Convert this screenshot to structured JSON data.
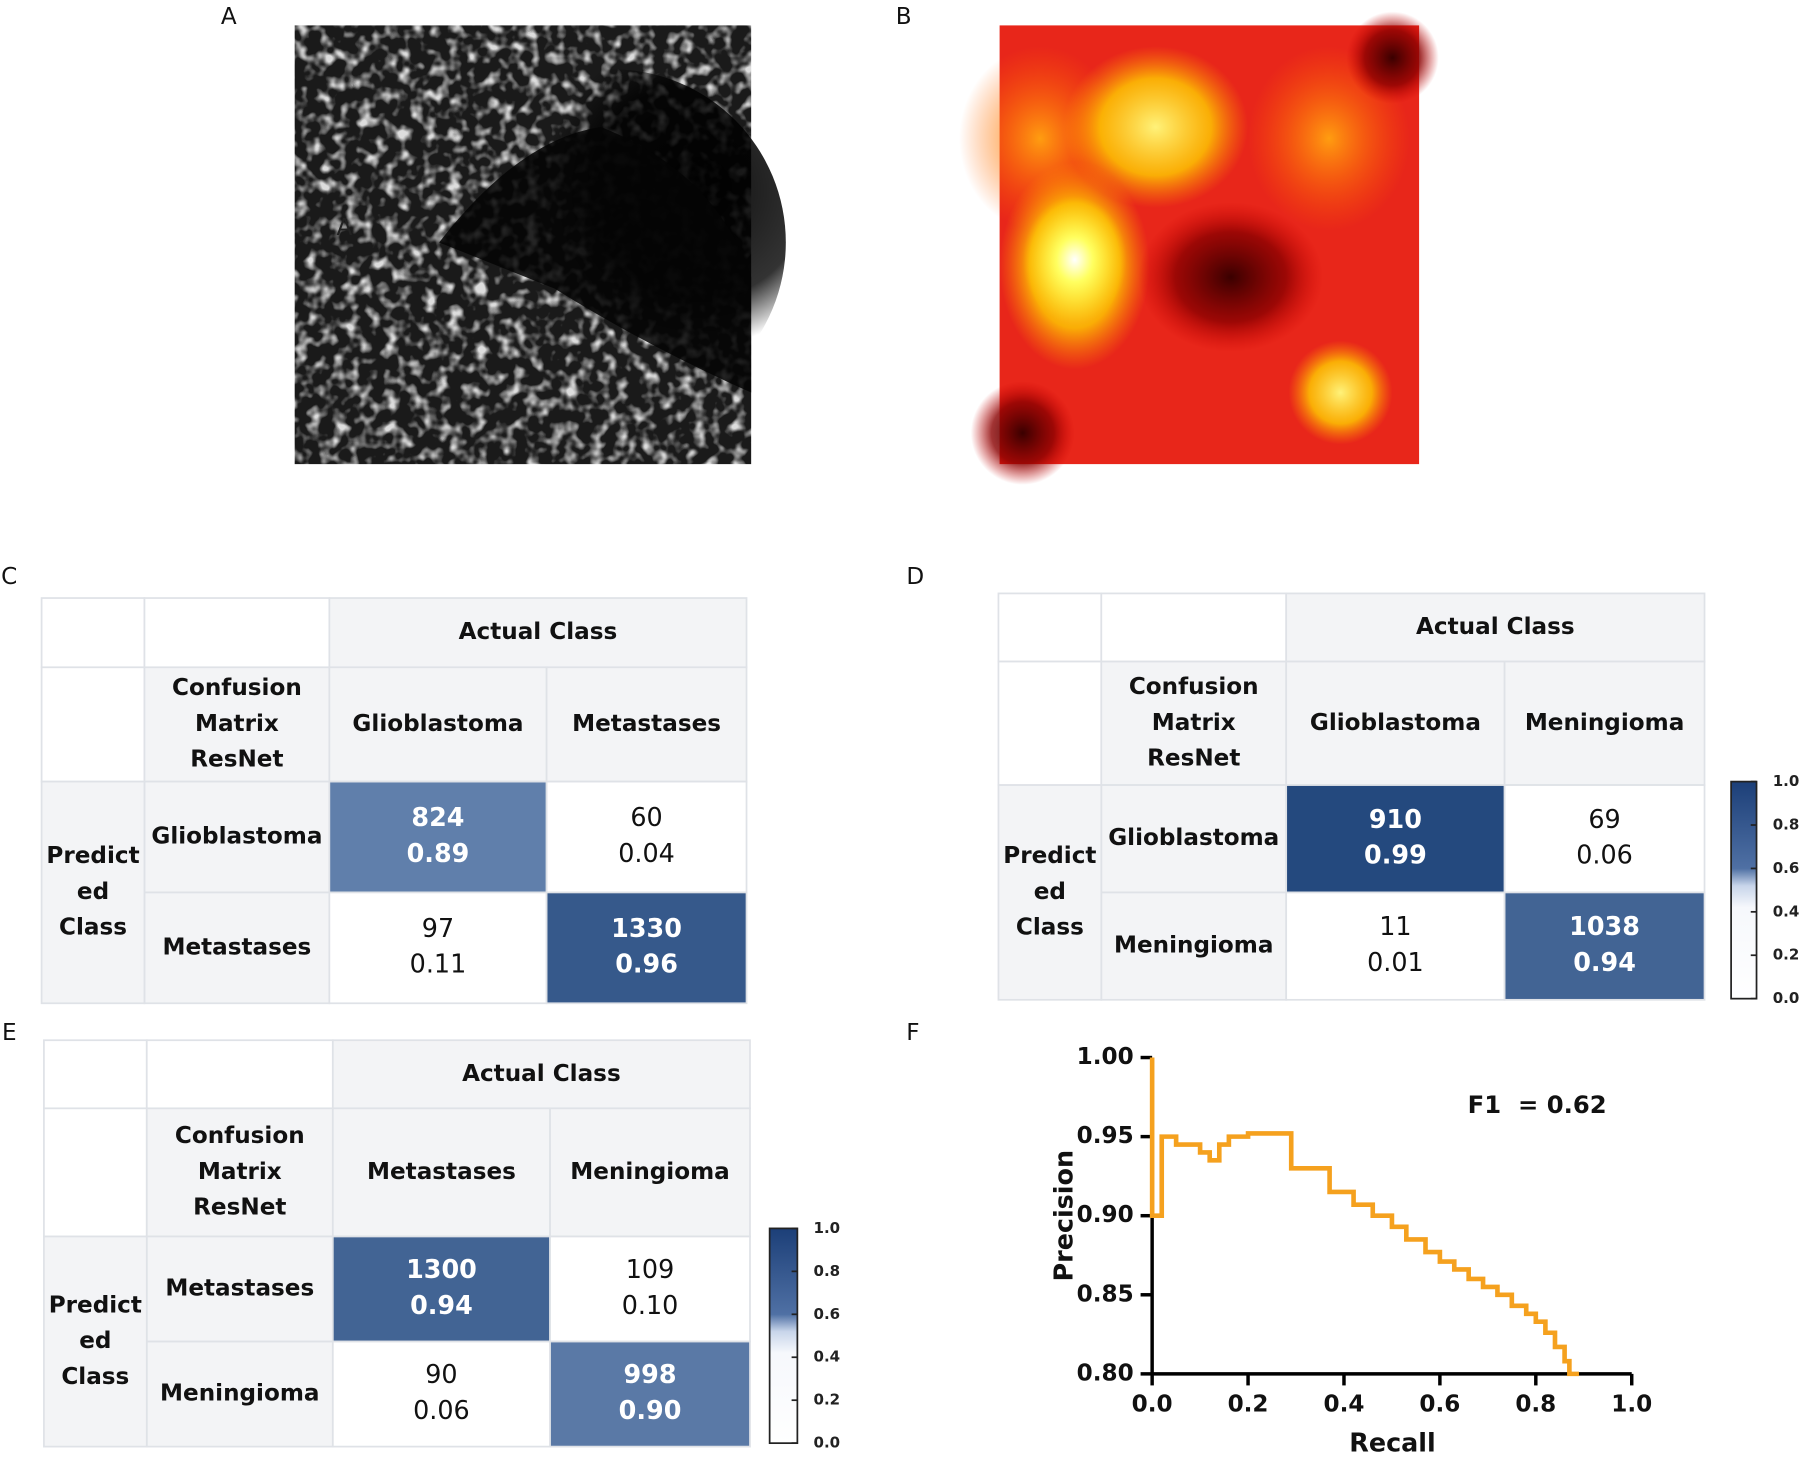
{
  "panels": [
    "A",
    "B",
    "C",
    "D",
    "E",
    "F"
  ],
  "image_a_overlay": "A",
  "matrices": [
    {
      "header": "Actual Class",
      "corner": [
        "Confusion",
        "Matrix",
        "ResNet"
      ],
      "row_header": [
        "Predict",
        "ed",
        "Class"
      ],
      "classes": [
        "Glioblastoma",
        "Metastases"
      ],
      "cells": [
        [
          {
            "count": 824,
            "fraction": "0.89"
          },
          {
            "count": 60,
            "fraction": "0.04"
          }
        ],
        [
          {
            "count": 97,
            "fraction": "0.11"
          },
          {
            "count": 1330,
            "fraction": "0.96"
          }
        ]
      ]
    },
    {
      "header": "Actual Class",
      "corner": [
        "Confusion",
        "Matrix",
        "ResNet"
      ],
      "row_header": [
        "Predict",
        "ed",
        "Class"
      ],
      "classes": [
        "Glioblastoma",
        "Meningioma"
      ],
      "cells": [
        [
          {
            "count": 910,
            "fraction": "0.99"
          },
          {
            "count": 69,
            "fraction": "0.06"
          }
        ],
        [
          {
            "count": 11,
            "fraction": "0.01"
          },
          {
            "count": 1038,
            "fraction": "0.94"
          }
        ]
      ],
      "colorbar": {
        "ticks": [
          {
            "value": 0,
            "label": "0.0"
          },
          0.2,
          0.4,
          0.6,
          0.8,
          {
            "value": 1,
            "label": "1.0"
          }
        ]
      }
    },
    {
      "header": "Actual Class",
      "corner": [
        "Confusion",
        "Matrix",
        "ResNet"
      ],
      "row_header": [
        "Predict",
        "ed",
        "Class"
      ],
      "classes": [
        "Metastases",
        "Meningioma"
      ],
      "cells": [
        [
          {
            "count": 1300,
            "fraction": "0.94"
          },
          {
            "count": 109,
            "fraction": "0.10"
          }
        ],
        [
          {
            "count": 90,
            "fraction": "0.06"
          },
          {
            "count": 998,
            "fraction": "0.90"
          }
        ]
      ],
      "colorbar": {
        "ticks": [
          {
            "value": 0,
            "label": "0.0"
          },
          0.2,
          0.4,
          0.6,
          0.8,
          {
            "value": 1,
            "label": "1.0"
          }
        ]
      }
    }
  ],
  "chart_data": {
    "type": "line",
    "xlabel": "Recall",
    "ylabel": "Precision",
    "annotation": "F1  = 0.62",
    "xlim": [
      0,
      1
    ],
    "ylim": [
      0.8,
      1
    ],
    "xticks": [
      {
        "value": 0,
        "label": "0.0"
      },
      0.2,
      0.4,
      0.6,
      0.8,
      {
        "value": 1,
        "label": "1.0"
      }
    ],
    "yticks": [
      {
        "value": 0.8,
        "label": "0.80"
      },
      0.85,
      {
        "value": 0.9,
        "label": "0.90"
      },
      0.95,
      {
        "value": 1,
        "label": "1.00"
      }
    ],
    "series": [
      {
        "color": "#f5a11e",
        "x": [
          0,
          0,
          0.02,
          0.02,
          0.05,
          0.05,
          0.1,
          0.1,
          0.12,
          0.12,
          0.14,
          0.14,
          0.16,
          0.16,
          0.2,
          0.2,
          0.29,
          0.29,
          0.37,
          0.37,
          0.42,
          0.42,
          0.46,
          0.46,
          0.5,
          0.5,
          0.53,
          0.53,
          0.57,
          0.57,
          0.6,
          0.6,
          0.63,
          0.63,
          0.66,
          0.66,
          0.69,
          0.69,
          0.72,
          0.72,
          0.75,
          0.75,
          0.78,
          0.78,
          0.8,
          0.8,
          0.82,
          0.82,
          0.84,
          0.84,
          0.86,
          0.86,
          0.87,
          0.87,
          0.89
        ],
        "values": [
          1,
          0.9,
          0.9,
          0.95,
          0.95,
          0.945,
          0.945,
          0.94,
          0.94,
          0.935,
          0.935,
          0.945,
          0.945,
          0.95,
          0.95,
          0.952,
          0.952,
          0.93,
          0.93,
          0.915,
          0.915,
          0.907,
          0.907,
          0.9,
          0.9,
          0.893,
          0.893,
          0.885,
          0.885,
          0.877,
          0.877,
          0.871,
          0.871,
          0.866,
          0.866,
          0.86,
          0.86,
          0.855,
          0.855,
          0.85,
          0.85,
          0.843,
          0.843,
          0.838,
          0.838,
          0.833,
          0.833,
          0.826,
          0.826,
          0.817,
          0.817,
          0.808,
          0.808,
          0.8,
          0.8
        ]
      }
    ]
  }
}
